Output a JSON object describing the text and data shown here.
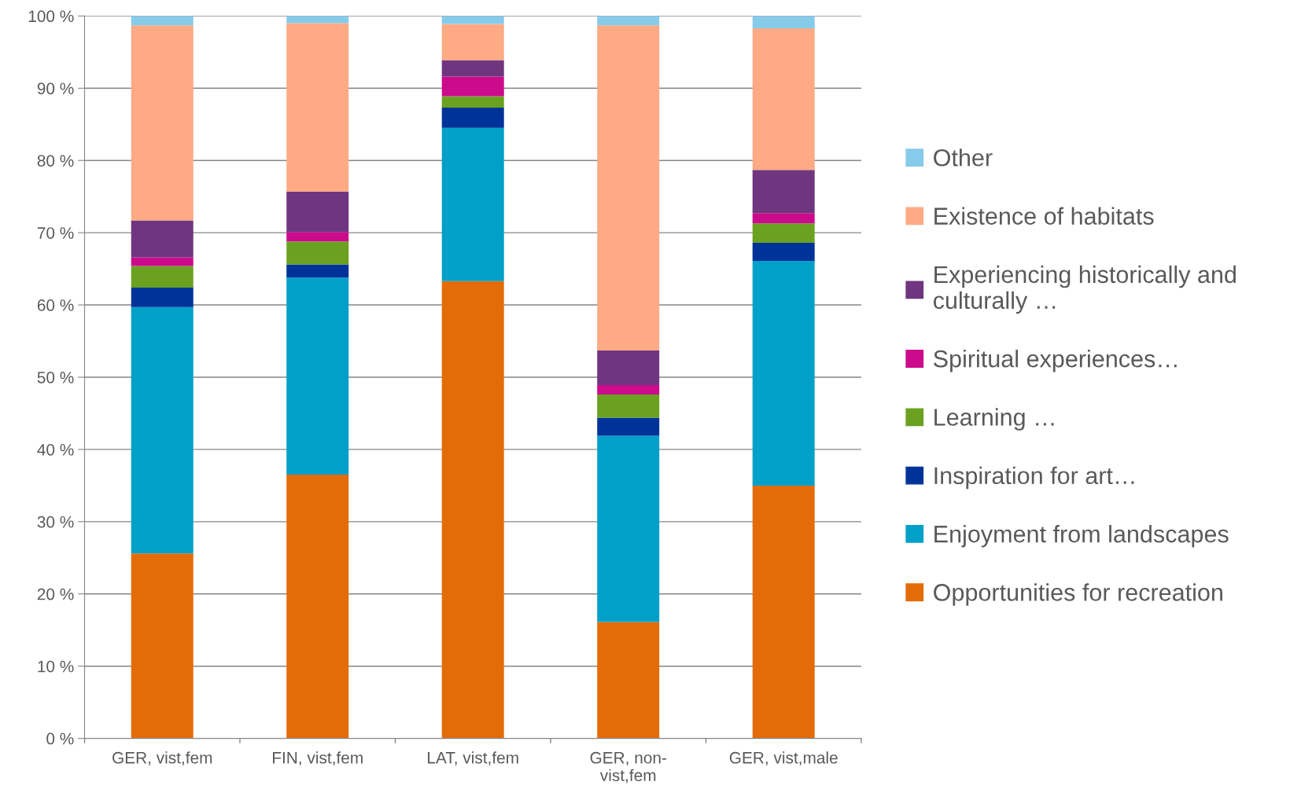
{
  "chart_data": {
    "type": "bar",
    "stacked": true,
    "categories": [
      "GER, vist,fem",
      "FIN, vist,fem",
      "LAT, vist,fem",
      "GER, non-\nvist,fem",
      "GER, vist,male"
    ],
    "series": [
      {
        "name": "Opportunities for recreation",
        "color": "#e36c09",
        "values": [
          25.6,
          36.5,
          63.3,
          16.1,
          35.0
        ]
      },
      {
        "name": "Enjoyment from landscapes",
        "color": "#00a0c8",
        "values": [
          34.1,
          27.3,
          21.2,
          25.8,
          31.1
        ]
      },
      {
        "name": "Inspiration for art…",
        "color": "#003399",
        "values": [
          2.7,
          1.8,
          2.8,
          2.5,
          2.5
        ]
      },
      {
        "name": "Learning …",
        "color": "#6aa121",
        "values": [
          3.0,
          3.2,
          1.6,
          3.2,
          2.7
        ]
      },
      {
        "name": "Spiritual experiences…",
        "color": "#cc0a8c",
        "values": [
          1.2,
          1.3,
          2.7,
          1.3,
          1.4
        ]
      },
      {
        "name": "Experiencing historically and\nculturally …",
        "color": "#70357f",
        "values": [
          5.1,
          5.6,
          2.3,
          4.8,
          6.0
        ]
      },
      {
        "name": "Existence of habitats",
        "color": "#fdaa85",
        "values": [
          27.0,
          23.3,
          5.0,
          45.0,
          19.6
        ]
      },
      {
        "name": "Other",
        "color": "#87cbea",
        "values": [
          1.3,
          1.0,
          1.1,
          1.3,
          1.7
        ]
      }
    ],
    "ylim": [
      0,
      100
    ],
    "yticks": [
      {
        "value": 0,
        "label": "0 %"
      },
      {
        "value": 10,
        "label": "10 %"
      },
      {
        "value": 20,
        "label": "20 %"
      },
      {
        "value": 30,
        "label": "30 %"
      },
      {
        "value": 40,
        "label": "40 %"
      },
      {
        "value": 50,
        "label": "50 %"
      },
      {
        "value": 60,
        "label": "60 %"
      },
      {
        "value": 70,
        "label": "70 %"
      },
      {
        "value": 80,
        "label": "80 %"
      },
      {
        "value": 90,
        "label": "90 %"
      },
      {
        "value": 100,
        "label": "100 %"
      }
    ],
    "grid": "y",
    "legend": "right"
  }
}
